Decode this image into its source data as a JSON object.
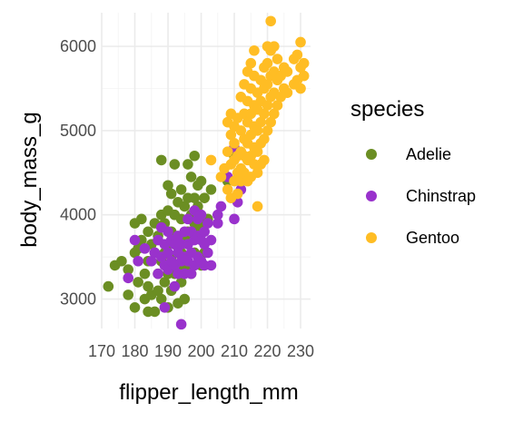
{
  "chart_data": {
    "type": "scatter",
    "title": "",
    "xlabel": "flipper_length_mm",
    "ylabel": "body_mass_g",
    "xlim": [
      170,
      233
    ],
    "ylim": [
      2650,
      6400
    ],
    "x_ticks": [
      170,
      180,
      190,
      200,
      210,
      220,
      230
    ],
    "y_ticks": [
      3000,
      4000,
      5000,
      6000
    ],
    "grid": true,
    "legend": {
      "title": "species",
      "position": "right"
    },
    "series": [
      {
        "name": "Adelie",
        "color": "#6B8E23",
        "points": [
          [
            172,
            3150
          ],
          [
            174,
            3400
          ],
          [
            176,
            3450
          ],
          [
            178,
            3050
          ],
          [
            178,
            3350
          ],
          [
            180,
            2900
          ],
          [
            180,
            3550
          ],
          [
            180,
            3900
          ],
          [
            181,
            3200
          ],
          [
            181,
            3600
          ],
          [
            182,
            3700
          ],
          [
            182,
            3950
          ],
          [
            183,
            3000
          ],
          [
            183,
            3300
          ],
          [
            184,
            2850
          ],
          [
            184,
            3150
          ],
          [
            184,
            3450
          ],
          [
            184,
            3800
          ],
          [
            185,
            3050
          ],
          [
            185,
            3650
          ],
          [
            186,
            2850
          ],
          [
            186,
            3550
          ],
          [
            186,
            3900
          ],
          [
            187,
            3100
          ],
          [
            187,
            3300
          ],
          [
            187,
            3750
          ],
          [
            188,
            3000
          ],
          [
            188,
            3450
          ],
          [
            188,
            4000
          ],
          [
            188,
            4650
          ],
          [
            189,
            3200
          ],
          [
            189,
            3550
          ],
          [
            189,
            3900
          ],
          [
            190,
            2900
          ],
          [
            190,
            3300
          ],
          [
            190,
            3650
          ],
          [
            190,
            4050
          ],
          [
            190,
            4350
          ],
          [
            191,
            3100
          ],
          [
            191,
            3500
          ],
          [
            191,
            3800
          ],
          [
            191,
            4250
          ],
          [
            192,
            3300
          ],
          [
            192,
            3650
          ],
          [
            192,
            4000
          ],
          [
            192,
            4600
          ],
          [
            193,
            2950
          ],
          [
            193,
            3400
          ],
          [
            193,
            3700
          ],
          [
            193,
            4150
          ],
          [
            194,
            3200
          ],
          [
            194,
            3550
          ],
          [
            194,
            3950
          ],
          [
            194,
            4300
          ],
          [
            195,
            3000
          ],
          [
            195,
            3350
          ],
          [
            195,
            3750
          ],
          [
            195,
            4100
          ],
          [
            196,
            3400
          ],
          [
            196,
            3800
          ],
          [
            196,
            4200
          ],
          [
            196,
            4600
          ],
          [
            197,
            3300
          ],
          [
            197,
            3700
          ],
          [
            197,
            4000
          ],
          [
            197,
            4450
          ],
          [
            198,
            3550
          ],
          [
            198,
            3900
          ],
          [
            198,
            4200
          ],
          [
            198,
            4700
          ],
          [
            199,
            3800
          ],
          [
            199,
            4100
          ],
          [
            199,
            4350
          ],
          [
            200,
            3400
          ],
          [
            200,
            3900
          ],
          [
            200,
            4400
          ],
          [
            201,
            3550
          ],
          [
            201,
            4200
          ],
          [
            202,
            3950
          ],
          [
            203,
            4300
          ],
          [
            208,
            4400
          ],
          [
            210,
            4700
          ]
        ]
      },
      {
        "name": "Chinstrap",
        "color": "#9932CC",
        "points": [
          [
            178,
            3250
          ],
          [
            180,
            3700
          ],
          [
            181,
            3450
          ],
          [
            183,
            3600
          ],
          [
            185,
            3450
          ],
          [
            186,
            3550
          ],
          [
            187,
            3300
          ],
          [
            187,
            3700
          ],
          [
            188,
            3500
          ],
          [
            188,
            3850
          ],
          [
            189,
            2900
          ],
          [
            189,
            3400
          ],
          [
            189,
            3650
          ],
          [
            190,
            3350
          ],
          [
            190,
            3550
          ],
          [
            190,
            3800
          ],
          [
            191,
            3450
          ],
          [
            191,
            3700
          ],
          [
            192,
            3150
          ],
          [
            192,
            3400
          ],
          [
            192,
            3650
          ],
          [
            193,
            3300
          ],
          [
            193,
            3550
          ],
          [
            193,
            3750
          ],
          [
            194,
            2700
          ],
          [
            194,
            3450
          ],
          [
            194,
            3650
          ],
          [
            195,
            3300
          ],
          [
            195,
            3500
          ],
          [
            195,
            3800
          ],
          [
            196,
            3450
          ],
          [
            196,
            3650
          ],
          [
            196,
            3950
          ],
          [
            197,
            3300
          ],
          [
            197,
            3550
          ],
          [
            197,
            3800
          ],
          [
            198,
            3400
          ],
          [
            198,
            3700
          ],
          [
            198,
            4050
          ],
          [
            199,
            3500
          ],
          [
            199,
            3750
          ],
          [
            199,
            3950
          ],
          [
            200,
            3450
          ],
          [
            200,
            3700
          ],
          [
            200,
            4000
          ],
          [
            201,
            3400
          ],
          [
            201,
            3650
          ],
          [
            201,
            3800
          ],
          [
            202,
            3550
          ],
          [
            202,
            3900
          ],
          [
            203,
            3400
          ],
          [
            203,
            3700
          ],
          [
            205,
            3900
          ],
          [
            205,
            4000
          ],
          [
            206,
            4100
          ],
          [
            208,
            4450
          ],
          [
            210,
            3950
          ],
          [
            211,
            4150
          ],
          [
            212,
            4300
          ],
          [
            210,
            4800
          ]
        ]
      },
      {
        "name": "Gentoo",
        "color": "#FFBD24",
        "points": [
          [
            203,
            4650
          ],
          [
            206,
            4450
          ],
          [
            207,
            4550
          ],
          [
            208,
            4300
          ],
          [
            208,
            4750
          ],
          [
            208,
            5100
          ],
          [
            209,
            4200
          ],
          [
            209,
            4600
          ],
          [
            209,
            4950
          ],
          [
            209,
            5200
          ],
          [
            210,
            4400
          ],
          [
            210,
            4650
          ],
          [
            210,
            4850
          ],
          [
            210,
            5050
          ],
          [
            211,
            4250
          ],
          [
            211,
            4500
          ],
          [
            211,
            4700
          ],
          [
            211,
            5150
          ],
          [
            212,
            4400
          ],
          [
            212,
            4550
          ],
          [
            212,
            4750
          ],
          [
            212,
            5000
          ],
          [
            212,
            5400
          ],
          [
            213,
            4500
          ],
          [
            213,
            4700
          ],
          [
            213,
            4900
          ],
          [
            213,
            5200
          ],
          [
            213,
            5550
          ],
          [
            214,
            4400
          ],
          [
            214,
            4650
          ],
          [
            214,
            4850
          ],
          [
            214,
            5100
          ],
          [
            214,
            5350
          ],
          [
            214,
            5700
          ],
          [
            215,
            4450
          ],
          [
            215,
            4700
          ],
          [
            215,
            4950
          ],
          [
            215,
            5200
          ],
          [
            215,
            5500
          ],
          [
            215,
            5800
          ],
          [
            216,
            4600
          ],
          [
            216,
            4800
          ],
          [
            216,
            5050
          ],
          [
            216,
            5300
          ],
          [
            216,
            5650
          ],
          [
            216,
            5950
          ],
          [
            217,
            4100
          ],
          [
            217,
            4500
          ],
          [
            217,
            4750
          ],
          [
            217,
            5000
          ],
          [
            217,
            5250
          ],
          [
            217,
            5450
          ],
          [
            218,
            4600
          ],
          [
            218,
            4850
          ],
          [
            218,
            5100
          ],
          [
            218,
            5350
          ],
          [
            218,
            5600
          ],
          [
            219,
            4650
          ],
          [
            219,
            4900
          ],
          [
            219,
            5200
          ],
          [
            219,
            5500
          ],
          [
            219,
            5750
          ],
          [
            220,
            5000
          ],
          [
            220,
            5300
          ],
          [
            220,
            5550
          ],
          [
            220,
            5800
          ],
          [
            220,
            6000
          ],
          [
            221,
            5100
          ],
          [
            221,
            5400
          ],
          [
            221,
            5650
          ],
          [
            221,
            5950
          ],
          [
            221,
            6300
          ],
          [
            222,
            5200
          ],
          [
            222,
            5450
          ],
          [
            222,
            5700
          ],
          [
            222,
            6000
          ],
          [
            223,
            5300
          ],
          [
            223,
            5600
          ],
          [
            223,
            5850
          ],
          [
            224,
            5400
          ],
          [
            224,
            5650
          ],
          [
            225,
            5500
          ],
          [
            225,
            5750
          ],
          [
            226,
            5450
          ],
          [
            226,
            5700
          ],
          [
            228,
            5550
          ],
          [
            228,
            5850
          ],
          [
            229,
            5600
          ],
          [
            229,
            5900
          ],
          [
            230,
            5500
          ],
          [
            230,
            5750
          ],
          [
            230,
            6050
          ],
          [
            231,
            5800
          ],
          [
            231,
            5650
          ]
        ]
      }
    ]
  }
}
